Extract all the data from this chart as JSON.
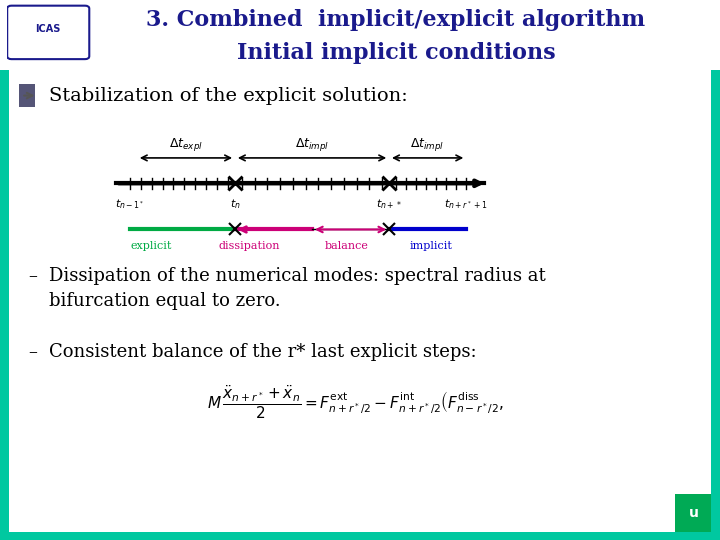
{
  "title_line1": "3. Combined  implicit/explicit algorithm",
  "title_line2": "Initial implicit conditions",
  "title_bg_color": "#00C8A0",
  "title_text_color": "#1a1a8c",
  "bg_color": "#ffffff",
  "bullet_text": "Stabilization of the explicit solution:",
  "dash1_text1": "Dissipation of the numerical modes: spectral radius at",
  "dash1_text2": "bifurcation equal to zero.",
  "dash2_text": "Consistent balance of the r* last explicit steps:",
  "body_text_color": "#000000",
  "teal_border_color": "#00C8A0",
  "green_nav_color": "#00aa55",
  "font_size_title": 16,
  "font_size_body": 13
}
